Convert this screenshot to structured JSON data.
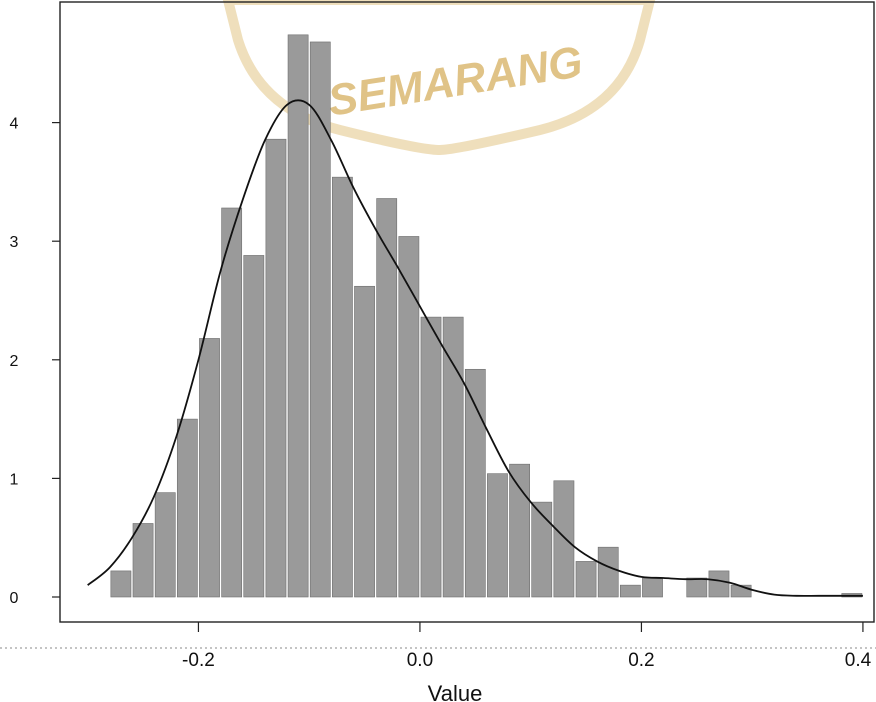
{
  "watermark": {
    "text": "SEMARANG",
    "color": "#d9b56a"
  },
  "chart_data": {
    "type": "bar",
    "xlabel": "Value",
    "ylabel": "",
    "xlim": [
      -0.325,
      0.41
    ],
    "ylim": [
      0,
      5
    ],
    "x_ticks": [
      -0.2,
      0.0,
      0.2,
      0.4
    ],
    "x_tick_labels": [
      "-0.2",
      "0.0",
      "0.2",
      "0.4"
    ],
    "y_ticks": [
      0,
      1,
      2,
      3,
      4
    ],
    "y_tick_labels": [
      "0",
      "1",
      "2",
      "3",
      "4"
    ],
    "grid": false,
    "bin_width": 0.02,
    "bins": [
      {
        "x0": -0.28,
        "x1": -0.26,
        "value": 0.22
      },
      {
        "x0": -0.26,
        "x1": -0.24,
        "value": 0.62
      },
      {
        "x0": -0.24,
        "x1": -0.22,
        "value": 0.88
      },
      {
        "x0": -0.22,
        "x1": -0.2,
        "value": 1.5
      },
      {
        "x0": -0.2,
        "x1": -0.18,
        "value": 2.18
      },
      {
        "x0": -0.18,
        "x1": -0.16,
        "value": 3.28
      },
      {
        "x0": -0.16,
        "x1": -0.14,
        "value": 2.88
      },
      {
        "x0": -0.14,
        "x1": -0.12,
        "value": 3.86
      },
      {
        "x0": -0.12,
        "x1": -0.1,
        "value": 4.74
      },
      {
        "x0": -0.1,
        "x1": -0.08,
        "value": 4.68
      },
      {
        "x0": -0.08,
        "x1": -0.06,
        "value": 3.54
      },
      {
        "x0": -0.06,
        "x1": -0.04,
        "value": 2.62
      },
      {
        "x0": -0.04,
        "x1": -0.02,
        "value": 3.36
      },
      {
        "x0": -0.02,
        "x1": 0.0,
        "value": 3.04
      },
      {
        "x0": 0.0,
        "x1": 0.02,
        "value": 2.36
      },
      {
        "x0": 0.02,
        "x1": 0.04,
        "value": 2.36
      },
      {
        "x0": 0.04,
        "x1": 0.06,
        "value": 1.92
      },
      {
        "x0": 0.06,
        "x1": 0.08,
        "value": 1.04
      },
      {
        "x0": 0.08,
        "x1": 0.1,
        "value": 1.12
      },
      {
        "x0": 0.1,
        "x1": 0.12,
        "value": 0.8
      },
      {
        "x0": 0.12,
        "x1": 0.14,
        "value": 0.98
      },
      {
        "x0": 0.14,
        "x1": 0.16,
        "value": 0.3
      },
      {
        "x0": 0.16,
        "x1": 0.18,
        "value": 0.42
      },
      {
        "x0": 0.18,
        "x1": 0.2,
        "value": 0.1
      },
      {
        "x0": 0.2,
        "x1": 0.22,
        "value": 0.16
      },
      {
        "x0": 0.24,
        "x1": 0.26,
        "value": 0.16
      },
      {
        "x0": 0.26,
        "x1": 0.28,
        "value": 0.22
      },
      {
        "x0": 0.28,
        "x1": 0.3,
        "value": 0.1
      },
      {
        "x0": 0.38,
        "x1": 0.4,
        "value": 0.03
      }
    ],
    "density": {
      "x": [
        -0.3,
        -0.28,
        -0.26,
        -0.24,
        -0.22,
        -0.2,
        -0.18,
        -0.16,
        -0.14,
        -0.12,
        -0.1,
        -0.08,
        -0.06,
        -0.04,
        -0.02,
        0.0,
        0.02,
        0.04,
        0.06,
        0.08,
        0.1,
        0.12,
        0.14,
        0.16,
        0.18,
        0.2,
        0.22,
        0.24,
        0.26,
        0.28,
        0.3,
        0.32,
        0.34,
        0.36,
        0.38,
        0.4
      ],
      "y": [
        0.1,
        0.25,
        0.5,
        0.85,
        1.35,
        2.0,
        2.75,
        3.35,
        3.85,
        4.15,
        4.15,
        3.85,
        3.45,
        3.1,
        2.78,
        2.45,
        2.12,
        1.8,
        1.42,
        1.06,
        0.8,
        0.6,
        0.42,
        0.3,
        0.22,
        0.17,
        0.16,
        0.15,
        0.15,
        0.12,
        0.06,
        0.02,
        0.01,
        0.01,
        0.01,
        0.01
      ]
    },
    "colors": {
      "bar": "#9a9a9a",
      "bar_edge": "#6e6e6e",
      "line": "#111111"
    }
  }
}
